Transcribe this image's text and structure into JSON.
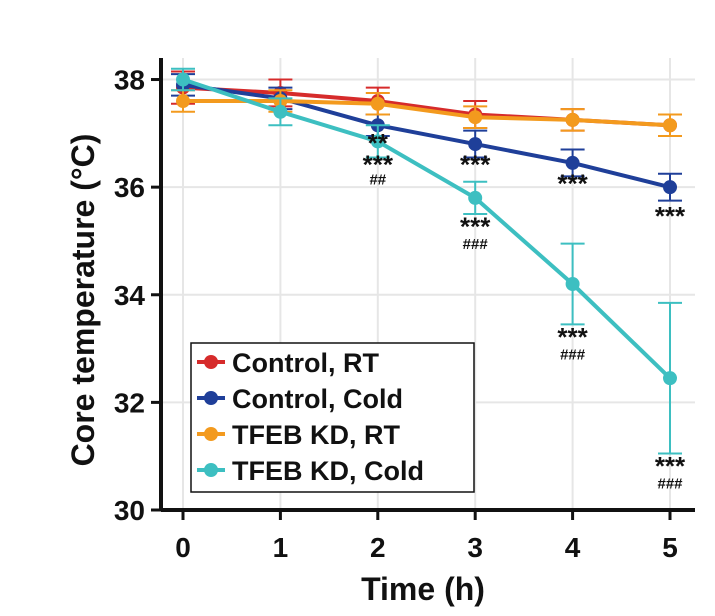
{
  "chart_data": {
    "type": "line",
    "title": "",
    "xlabel": "Time (h)",
    "ylabel": "Core temperature (°C)",
    "x": [
      0,
      1,
      2,
      3,
      4,
      5
    ],
    "xlim": [
      0,
      5
    ],
    "ylim": [
      30,
      38.4
    ],
    "xticks": [
      "0",
      "1",
      "2",
      "3",
      "4",
      "5"
    ],
    "yticks": [
      "30",
      "32",
      "34",
      "36",
      "38"
    ],
    "grid": true,
    "legend_position": "bottom-left",
    "series": [
      {
        "name": "Control, RT",
        "color": "#d62b2b",
        "values": [
          37.85,
          37.75,
          37.6,
          37.35,
          37.25,
          37.15
        ],
        "errors": [
          0.3,
          0.25,
          0.25,
          0.25,
          0.2,
          0.2
        ]
      },
      {
        "name": "Control, Cold",
        "color": "#1f3f99",
        "values": [
          37.9,
          37.65,
          37.15,
          36.8,
          36.45,
          36.0
        ],
        "errors": [
          0.2,
          0.2,
          0.2,
          0.25,
          0.25,
          0.25
        ]
      },
      {
        "name": "TFEB KD, RT",
        "color": "#f39a1e",
        "values": [
          37.6,
          37.6,
          37.55,
          37.3,
          37.25,
          37.15
        ],
        "errors": [
          0.2,
          0.2,
          0.2,
          0.2,
          0.2,
          0.2
        ]
      },
      {
        "name": "TFEB KD, Cold",
        "color": "#3dbfc1",
        "values": [
          38.0,
          37.4,
          36.85,
          35.8,
          34.2,
          32.45
        ],
        "errors": [
          0.2,
          0.25,
          0.3,
          0.3,
          0.75,
          1.4
        ]
      }
    ],
    "annotations": [
      {
        "x": 2,
        "y": 36.65,
        "text": "**",
        "kind": "star"
      },
      {
        "x": 2,
        "y": 36.25,
        "text": "***",
        "kind": "star"
      },
      {
        "x": 2,
        "y": 36.05,
        "text": "##",
        "kind": "hash"
      },
      {
        "x": 3,
        "y": 36.25,
        "text": "***",
        "kind": "star"
      },
      {
        "x": 3,
        "y": 35.1,
        "text": "***",
        "kind": "star"
      },
      {
        "x": 3,
        "y": 34.85,
        "text": "###",
        "kind": "hash"
      },
      {
        "x": 4,
        "y": 35.9,
        "text": "***",
        "kind": "star"
      },
      {
        "x": 4,
        "y": 33.05,
        "text": "***",
        "kind": "star"
      },
      {
        "x": 4,
        "y": 32.8,
        "text": "###",
        "kind": "hash"
      },
      {
        "x": 5,
        "y": 35.3,
        "text": "***",
        "kind": "star"
      },
      {
        "x": 5,
        "y": 30.65,
        "text": "***",
        "kind": "star"
      },
      {
        "x": 5,
        "y": 30.4,
        "text": "###",
        "kind": "hash"
      }
    ]
  }
}
